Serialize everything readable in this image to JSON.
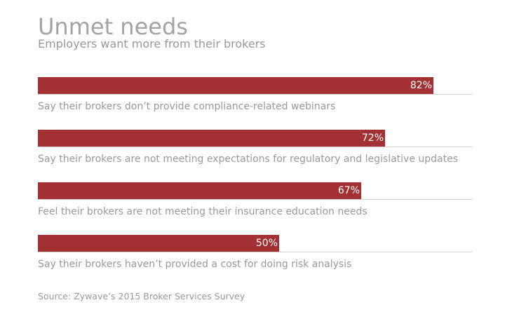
{
  "title": "Unmet needs",
  "subtitle": "Employers want more from their brokers",
  "source": "Source: Zywave’s 2015 Broker Services Survey",
  "colors": {
    "bar": "#a33133",
    "text": "#999999",
    "title": "#a3a3a3",
    "baseline": "#d0d0d0"
  },
  "chart_data": {
    "type": "bar",
    "orientation": "horizontal",
    "title": "Unmet needs",
    "subtitle": "Employers want more from their brokers",
    "categories": [
      "Say their brokers don’t provide compliance-related webinars",
      "Say their brokers are not meeting expectations for regulatory and legislative updates",
      "Feel their brokers are not meeting their insurance education needs",
      "Say their brokers haven’t provided a cost for doing risk analysis"
    ],
    "values": [
      82,
      72,
      67,
      50
    ],
    "value_labels": [
      "82%",
      "72%",
      "67%",
      "50%"
    ],
    "xlim": [
      0,
      100
    ],
    "grid": false,
    "legend": "none"
  }
}
